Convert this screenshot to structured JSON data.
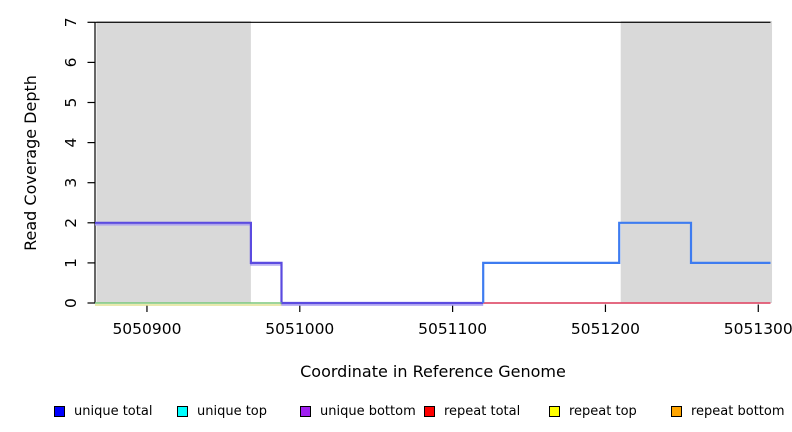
{
  "chart_data": {
    "type": "line",
    "title": "",
    "xlabel": "Coordinate in Reference Genome",
    "ylabel": "Read Coverage Depth",
    "xlim": [
      5050866,
      5051308
    ],
    "ylim": [
      0,
      7
    ],
    "xticks": [
      5050900,
      5051000,
      5051100,
      5051200,
      5051300
    ],
    "yticks": [
      0,
      1,
      2,
      3,
      4,
      5,
      6,
      7
    ],
    "grid": false,
    "legend_position": "bottom",
    "colors": {
      "shaded_region": "#d9d9d9",
      "axis": "#000000",
      "background": "#ffffff"
    },
    "shaded_regions": [
      {
        "name": "left-repeat-region",
        "x0": 5050867,
        "x1": 5050968
      },
      {
        "name": "right-repeat-region",
        "x0": 5051210,
        "x1": 5051309
      }
    ],
    "series": [
      {
        "name": "unique-coverage-steps-left",
        "color": "#5b4be0",
        "under_color": "#a89cf0",
        "width": 2.2,
        "points": [
          [
            5050866,
            2
          ],
          [
            5050968,
            2
          ],
          [
            5050968,
            1
          ],
          [
            5050988,
            1
          ],
          [
            5050988,
            0
          ],
          [
            5051120,
            0
          ]
        ]
      },
      {
        "name": "zero-baseline-left",
        "color": "#7bc77b",
        "under_color": "#e2e292",
        "width": 1.6,
        "points": [
          [
            5050866,
            0
          ],
          [
            5050988,
            0
          ]
        ]
      },
      {
        "name": "repeat-baseline-right",
        "color": "#e05570",
        "width": 1.8,
        "points": [
          [
            5051120,
            0
          ],
          [
            5051308,
            0
          ]
        ]
      },
      {
        "name": "unique-coverage-steps-right",
        "color": "#3e7cf0",
        "width": 2.2,
        "points": [
          [
            5051120,
            0
          ],
          [
            5051120,
            1
          ],
          [
            5051209,
            1
          ],
          [
            5051209,
            2
          ],
          [
            5051256,
            2
          ],
          [
            5051256,
            1
          ],
          [
            5051308,
            1
          ]
        ]
      }
    ],
    "legend": [
      {
        "label": "unique total",
        "color": "#0000FF"
      },
      {
        "label": "unique top",
        "color": "#00FFFF"
      },
      {
        "label": "unique bottom",
        "color": "#A020F0"
      },
      {
        "label": "repeat total",
        "color": "#FF0000"
      },
      {
        "label": "repeat top",
        "color": "#FFFF00"
      },
      {
        "label": "repeat bottom",
        "color": "#FFA500"
      }
    ]
  }
}
